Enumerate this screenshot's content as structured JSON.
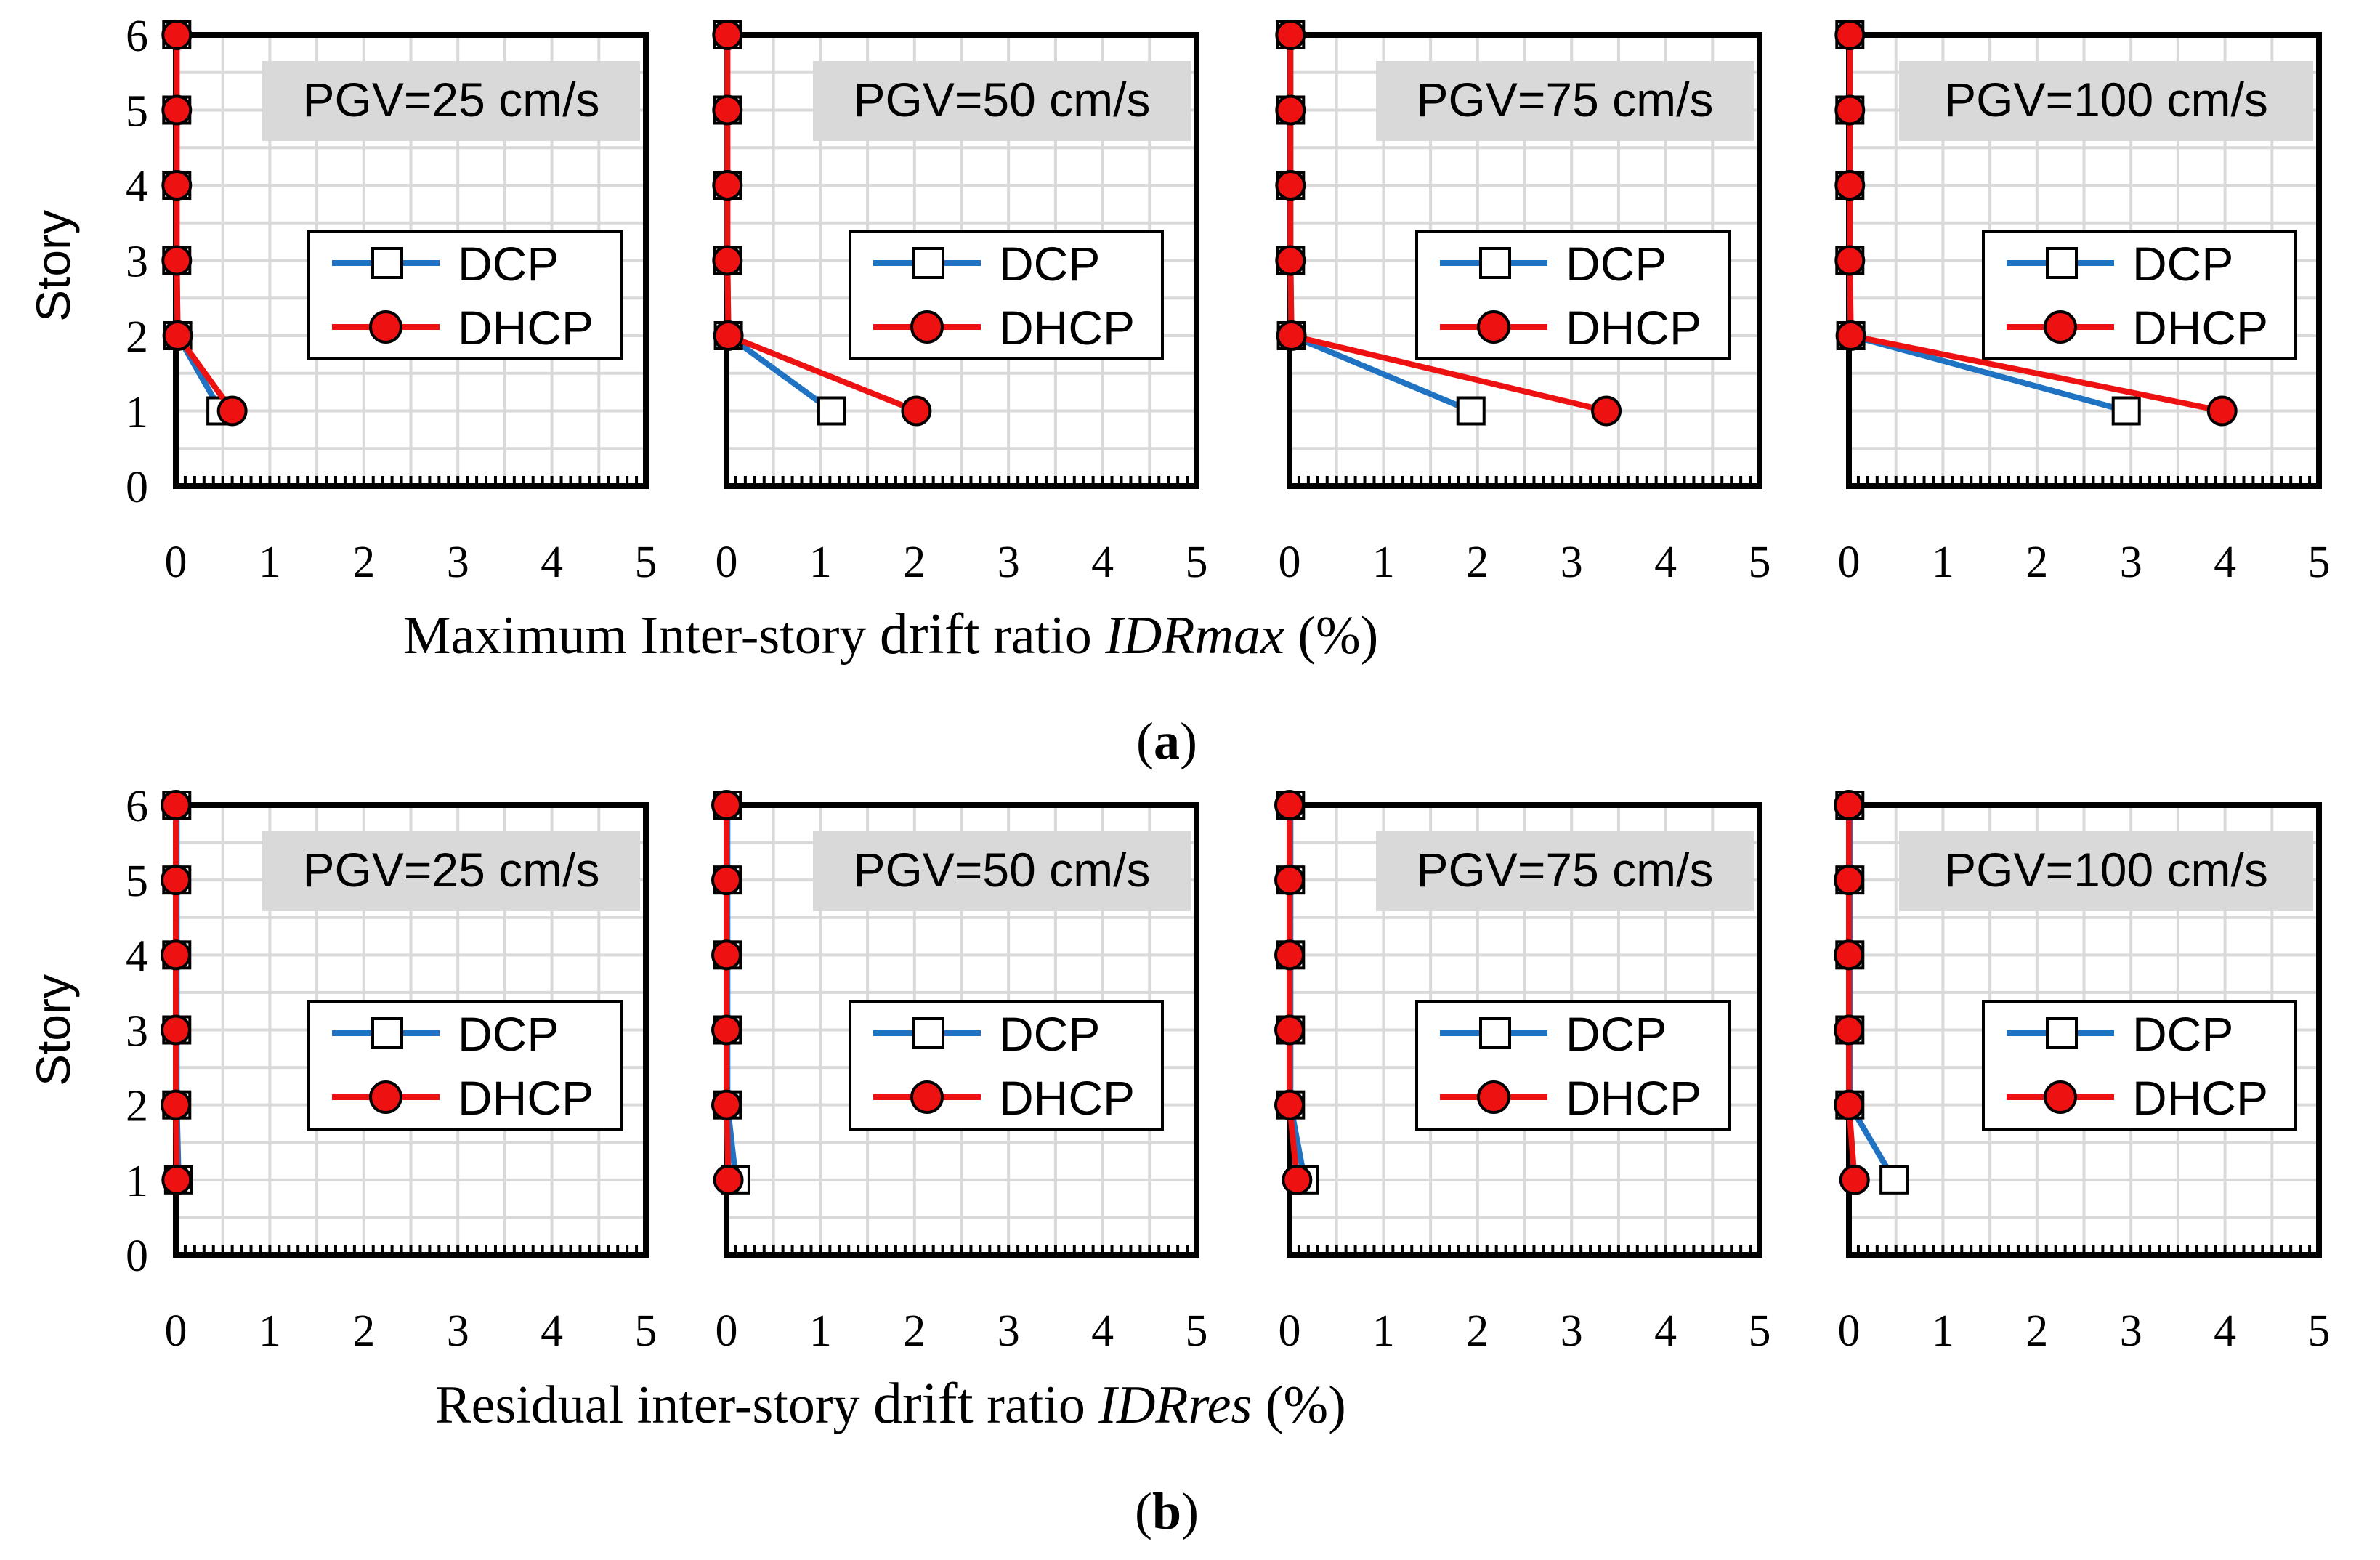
{
  "chart_data": [
    {
      "type": "line",
      "panel": "a",
      "subplot": 1,
      "title": "PGV=25 cm/s",
      "xlabel": "Maximum Inter-story drift ratio IDRmax (%)",
      "ylabel": "Story",
      "xlim": [
        0,
        5
      ],
      "ylim": [
        0,
        6
      ],
      "xticks": [
        "0",
        "1",
        "2",
        "3",
        "4",
        "5"
      ],
      "yticks": [
        "0",
        "1",
        "2",
        "3",
        "4",
        "5",
        "6"
      ],
      "legend": [
        "DCP",
        "DHCP"
      ],
      "series": [
        {
          "name": "DCP",
          "x": [
            0.48,
            0.02,
            0.01,
            0.01,
            0.01,
            0.01
          ],
          "y": [
            1,
            2,
            3,
            4,
            5,
            6
          ]
        },
        {
          "name": "DHCP",
          "x": [
            0.6,
            0.02,
            0.01,
            0.01,
            0.01,
            0.01
          ],
          "y": [
            1,
            2,
            3,
            4,
            5,
            6
          ]
        }
      ]
    },
    {
      "type": "line",
      "panel": "a",
      "subplot": 2,
      "title": "PGV=50 cm/s",
      "xlabel": "Maximum Inter-story drift ratio IDRmax (%)",
      "ylabel": "Story",
      "xlim": [
        0,
        5
      ],
      "ylim": [
        0,
        6
      ],
      "xticks": [
        "0",
        "1",
        "2",
        "3",
        "4",
        "5"
      ],
      "yticks": [
        "0",
        "1",
        "2",
        "3",
        "4",
        "5",
        "6"
      ],
      "legend": [
        "DCP",
        "DHCP"
      ],
      "series": [
        {
          "name": "DCP",
          "x": [
            1.12,
            0.02,
            0.01,
            0.01,
            0.01,
            0.01
          ],
          "y": [
            1,
            2,
            3,
            4,
            5,
            6
          ]
        },
        {
          "name": "DHCP",
          "x": [
            2.02,
            0.02,
            0.01,
            0.01,
            0.01,
            0.01
          ],
          "y": [
            1,
            2,
            3,
            4,
            5,
            6
          ]
        }
      ]
    },
    {
      "type": "line",
      "panel": "a",
      "subplot": 3,
      "title": "PGV=75 cm/s",
      "xlabel": "Maximum Inter-story drift ratio IDRmax (%)",
      "ylabel": "Story",
      "xlim": [
        0,
        5
      ],
      "ylim": [
        0,
        6
      ],
      "xticks": [
        "0",
        "1",
        "2",
        "3",
        "4",
        "5"
      ],
      "yticks": [
        "0",
        "1",
        "2",
        "3",
        "4",
        "5",
        "6"
      ],
      "legend": [
        "DCP",
        "DHCP"
      ],
      "series": [
        {
          "name": "DCP",
          "x": [
            1.93,
            0.02,
            0.01,
            0.01,
            0.01,
            0.01
          ],
          "y": [
            1,
            2,
            3,
            4,
            5,
            6
          ]
        },
        {
          "name": "DHCP",
          "x": [
            3.37,
            0.02,
            0.01,
            0.01,
            0.01,
            0.01
          ],
          "y": [
            1,
            2,
            3,
            4,
            5,
            6
          ]
        }
      ]
    },
    {
      "type": "line",
      "panel": "a",
      "subplot": 4,
      "title": "PGV=100 cm/s",
      "xlabel": "Maximum Inter-story drift ratio IDRmax (%)",
      "ylabel": "Story",
      "xlim": [
        0,
        5
      ],
      "ylim": [
        0,
        6
      ],
      "xticks": [
        "0",
        "1",
        "2",
        "3",
        "4",
        "5"
      ],
      "yticks": [
        "0",
        "1",
        "2",
        "3",
        "4",
        "5",
        "6"
      ],
      "legend": [
        "DCP",
        "DHCP"
      ],
      "series": [
        {
          "name": "DCP",
          "x": [
            2.95,
            0.02,
            0.01,
            0.01,
            0.01,
            0.01
          ],
          "y": [
            1,
            2,
            3,
            4,
            5,
            6
          ]
        },
        {
          "name": "DHCP",
          "x": [
            3.97,
            0.02,
            0.01,
            0.01,
            0.01,
            0.01
          ],
          "y": [
            1,
            2,
            3,
            4,
            5,
            6
          ]
        }
      ]
    },
    {
      "type": "line",
      "panel": "b",
      "subplot": 1,
      "title": "PGV=25 cm/s",
      "xlabel": "Residual inter-story drift ratio IDRres (%)",
      "ylabel": "Story",
      "xlim": [
        0,
        5
      ],
      "ylim": [
        0,
        6
      ],
      "xticks": [
        "0",
        "1",
        "2",
        "3",
        "4",
        "5"
      ],
      "yticks": [
        "0",
        "1",
        "2",
        "3",
        "4",
        "5",
        "6"
      ],
      "legend": [
        "DCP",
        "DHCP"
      ],
      "series": [
        {
          "name": "DCP",
          "x": [
            0.03,
            0.01,
            0.01,
            0.01,
            0.01,
            0.01
          ],
          "y": [
            1,
            2,
            3,
            4,
            5,
            6
          ]
        },
        {
          "name": "DHCP",
          "x": [
            0.01,
            0.0,
            0.0,
            0.0,
            0.0,
            0.0
          ],
          "y": [
            1,
            2,
            3,
            4,
            5,
            6
          ]
        }
      ]
    },
    {
      "type": "line",
      "panel": "b",
      "subplot": 2,
      "title": "PGV=50 cm/s",
      "xlabel": "Residual inter-story drift ratio IDRres (%)",
      "ylabel": "Story",
      "xlim": [
        0,
        5
      ],
      "ylim": [
        0,
        6
      ],
      "xticks": [
        "0",
        "1",
        "2",
        "3",
        "4",
        "5"
      ],
      "yticks": [
        "0",
        "1",
        "2",
        "3",
        "4",
        "5",
        "6"
      ],
      "legend": [
        "DCP",
        "DHCP"
      ],
      "series": [
        {
          "name": "DCP",
          "x": [
            0.1,
            0.01,
            0.01,
            0.01,
            0.01,
            0.01
          ],
          "y": [
            1,
            2,
            3,
            4,
            5,
            6
          ]
        },
        {
          "name": "DHCP",
          "x": [
            0.02,
            0.0,
            0.0,
            0.0,
            0.0,
            0.0
          ],
          "y": [
            1,
            2,
            3,
            4,
            5,
            6
          ]
        }
      ]
    },
    {
      "type": "line",
      "panel": "b",
      "subplot": 3,
      "title": "PGV=75 cm/s",
      "xlabel": "Residual inter-story drift ratio IDRres (%)",
      "ylabel": "Story",
      "xlim": [
        0,
        5
      ],
      "ylim": [
        0,
        6
      ],
      "xticks": [
        "0",
        "1",
        "2",
        "3",
        "4",
        "5"
      ],
      "yticks": [
        "0",
        "1",
        "2",
        "3",
        "4",
        "5",
        "6"
      ],
      "legend": [
        "DCP",
        "DHCP"
      ],
      "series": [
        {
          "name": "DCP",
          "x": [
            0.16,
            0.01,
            0.01,
            0.01,
            0.01,
            0.01
          ],
          "y": [
            1,
            2,
            3,
            4,
            5,
            6
          ]
        },
        {
          "name": "DHCP",
          "x": [
            0.08,
            0.0,
            0.0,
            0.0,
            0.0,
            0.0
          ],
          "y": [
            1,
            2,
            3,
            4,
            5,
            6
          ]
        }
      ]
    },
    {
      "type": "line",
      "panel": "b",
      "subplot": 4,
      "title": "PGV=100 cm/s",
      "xlabel": "Residual inter-story drift ratio IDRres (%)",
      "ylabel": "Story",
      "xlim": [
        0,
        5
      ],
      "ylim": [
        0,
        6
      ],
      "xticks": [
        "0",
        "1",
        "2",
        "3",
        "4",
        "5"
      ],
      "yticks": [
        "0",
        "1",
        "2",
        "3",
        "4",
        "5",
        "6"
      ],
      "legend": [
        "DCP",
        "DHCP"
      ],
      "series": [
        {
          "name": "DCP",
          "x": [
            0.48,
            0.01,
            0.01,
            0.01,
            0.01,
            0.01
          ],
          "y": [
            1,
            2,
            3,
            4,
            5,
            6
          ]
        },
        {
          "name": "DHCP",
          "x": [
            0.06,
            0.0,
            0.0,
            0.0,
            0.0,
            0.0
          ],
          "y": [
            1,
            2,
            3,
            4,
            5,
            6
          ]
        }
      ]
    }
  ],
  "rows": [
    {
      "label_open": "(",
      "label_letter": "a",
      "label_close": ")",
      "xlabel_pre": "Maximum Inter-story ",
      "xlabel_mid": "drift",
      "xlabel_mid2": " ratio ",
      "xlabel_italic": "IDRmax",
      "xlabel_post": " (%)"
    },
    {
      "label_open": "(",
      "label_letter": "b",
      "label_close": ")",
      "xlabel_pre": "Residual inter-story ",
      "xlabel_mid": "drift",
      "xlabel_mid2": " ratio ",
      "xlabel_italic": "IDRres",
      "xlabel_post": " (%)"
    }
  ],
  "colors": {
    "DCP": "#1f73c2",
    "DHCP": "#ee1111",
    "marker_DCP_fill": "#ffffff",
    "marker_DHCP_fill": "#ee1111",
    "grid": "#d9d9d9",
    "title_box": "#d9d9d9",
    "axis": "#000000"
  }
}
